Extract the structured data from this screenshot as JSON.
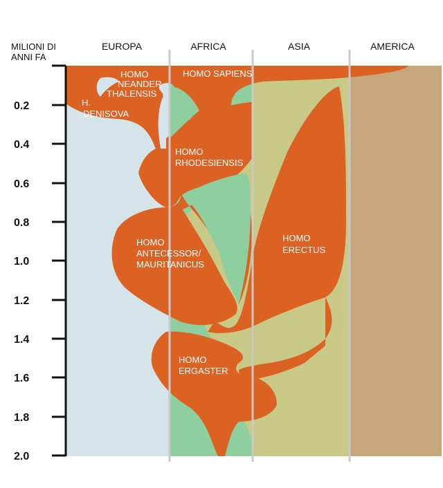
{
  "axis": {
    "title_line1": "MILIONI DI",
    "title_line2": "ANNI FA",
    "ticks": [
      "0.2",
      "0.4",
      "0.6",
      "0.8",
      "1.0",
      "1.2",
      "1.4",
      "1.6",
      "1.8",
      "2.0"
    ]
  },
  "regions": [
    {
      "name": "EUROPA",
      "color": "#d5e4e9"
    },
    {
      "name": "AFRICA",
      "color": "#8fce9f"
    },
    {
      "name": "ASIA",
      "color": "#c9c987"
    },
    {
      "name": "AMERICA",
      "color": "#c8a67c"
    }
  ],
  "species": {
    "neanderthalensis": [
      "HOMO",
      "NEANDER",
      "THALENSIS"
    ],
    "sapiens": [
      "HOMO SAPIENS"
    ],
    "denisova": [
      "H.",
      "DENISOVA"
    ],
    "rhodesiensis": [
      "HOMO",
      "RHODESIENSIS"
    ],
    "antecessor": [
      "HOMO",
      "ANTECESSOR/",
      "MAURITANICUS"
    ],
    "erectus": [
      "HOMO",
      "ERECTUS"
    ],
    "ergaster": [
      "HOMO",
      "ERGASTER"
    ]
  },
  "colors": {
    "hominin": "#dc6224",
    "divider": "#c9c9c9",
    "axis": "#111111"
  }
}
